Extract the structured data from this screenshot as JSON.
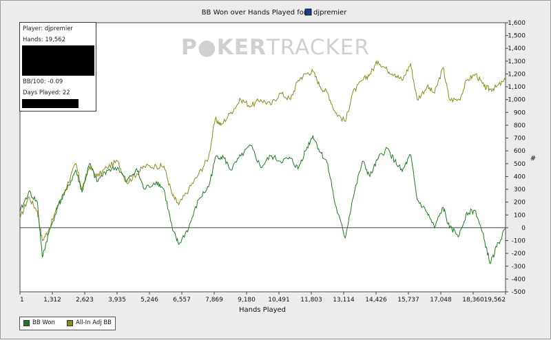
{
  "watermark": {
    "part1": "P",
    "part2": "KER",
    "part3": "TRACKER"
  },
  "info_box": {
    "player": "Player: djpremier",
    "hands": "Hands: 19,562",
    "bb100": "BB/100: -0.09",
    "days": "Days Played: 22"
  },
  "legend": {
    "series1": "BB Won",
    "series2": "All-In Adj BB"
  },
  "colors": {
    "bb_won": "#1f7a1f",
    "allin": "#8a8a1e",
    "zero_line": "#000000"
  },
  "chart_data": {
    "type": "line",
    "title_prefix": "BB Won over Hands Played for",
    "title_player": "djpremier",
    "xlabel": "Hands Played",
    "ylabel": "#",
    "xlim": [
      1,
      19562
    ],
    "ylim": [
      -500,
      1600
    ],
    "x_ticks": [
      "1",
      "1,312",
      "2,623",
      "3,935",
      "5,246",
      "6,557",
      "7,869",
      "9,180",
      "10,491",
      "11,803",
      "13,114",
      "14,426",
      "15,737",
      "17,048",
      "18,360",
      "19,562"
    ],
    "y_ticks": [
      "1,600",
      "1,500",
      "1,400",
      "1,300",
      "1,200",
      "1,100",
      "1,000",
      "900",
      "800",
      "700",
      "600",
      "500",
      "400",
      "300",
      "200",
      "100",
      "0",
      "-100",
      "-200",
      "-300",
      "-400",
      "-500"
    ],
    "series": [
      {
        "name": "BB Won",
        "points": [
          [
            1,
            120
          ],
          [
            350,
            280
          ],
          [
            700,
            200
          ],
          [
            900,
            -230
          ],
          [
            1150,
            -50
          ],
          [
            1550,
            180
          ],
          [
            1900,
            300
          ],
          [
            2250,
            450
          ],
          [
            2500,
            280
          ],
          [
            2800,
            500
          ],
          [
            3100,
            360
          ],
          [
            3500,
            450
          ],
          [
            3935,
            470
          ],
          [
            4300,
            360
          ],
          [
            4700,
            460
          ],
          [
            5000,
            300
          ],
          [
            5500,
            360
          ],
          [
            5800,
            300
          ],
          [
            6150,
            -20
          ],
          [
            6400,
            -130
          ],
          [
            6800,
            0
          ],
          [
            7200,
            220
          ],
          [
            7600,
            320
          ],
          [
            7900,
            560
          ],
          [
            8200,
            550
          ],
          [
            8500,
            450
          ],
          [
            8900,
            560
          ],
          [
            9300,
            640
          ],
          [
            9700,
            470
          ],
          [
            10100,
            560
          ],
          [
            10491,
            520
          ],
          [
            10900,
            540
          ],
          [
            11200,
            460
          ],
          [
            11500,
            600
          ],
          [
            11803,
            720
          ],
          [
            12100,
            590
          ],
          [
            12400,
            500
          ],
          [
            12700,
            180
          ],
          [
            13100,
            -80
          ],
          [
            13400,
            220
          ],
          [
            13800,
            520
          ],
          [
            14100,
            400
          ],
          [
            14426,
            540
          ],
          [
            14800,
            620
          ],
          [
            15100,
            520
          ],
          [
            15400,
            440
          ],
          [
            15737,
            570
          ],
          [
            16000,
            220
          ],
          [
            16400,
            120
          ],
          [
            16700,
            0
          ],
          [
            17048,
            160
          ],
          [
            17300,
            0
          ],
          [
            17700,
            -60
          ],
          [
            18000,
            120
          ],
          [
            18360,
            130
          ],
          [
            18700,
            -90
          ],
          [
            18950,
            -280
          ],
          [
            19200,
            -150
          ],
          [
            19562,
            -10
          ]
        ]
      },
      {
        "name": "All-In Adj BB",
        "points": [
          [
            1,
            70
          ],
          [
            350,
            240
          ],
          [
            700,
            130
          ],
          [
            900,
            -100
          ],
          [
            1150,
            -20
          ],
          [
            1550,
            180
          ],
          [
            1900,
            330
          ],
          [
            2250,
            500
          ],
          [
            2500,
            300
          ],
          [
            2800,
            480
          ],
          [
            3100,
            400
          ],
          [
            3500,
            470
          ],
          [
            3935,
            520
          ],
          [
            4300,
            350
          ],
          [
            4700,
            420
          ],
          [
            5000,
            480
          ],
          [
            5500,
            480
          ],
          [
            5800,
            480
          ],
          [
            6150,
            250
          ],
          [
            6400,
            180
          ],
          [
            6800,
            300
          ],
          [
            7200,
            420
          ],
          [
            7600,
            550
          ],
          [
            7869,
            850
          ],
          [
            8100,
            800
          ],
          [
            8500,
            900
          ],
          [
            8900,
            1000
          ],
          [
            9300,
            950
          ],
          [
            9700,
            1000
          ],
          [
            10100,
            960
          ],
          [
            10491,
            1050
          ],
          [
            10900,
            1000
          ],
          [
            11200,
            1150
          ],
          [
            11500,
            1200
          ],
          [
            11803,
            1220
          ],
          [
            12100,
            1100
          ],
          [
            12400,
            1050
          ],
          [
            12700,
            900
          ],
          [
            13114,
            830
          ],
          [
            13400,
            1050
          ],
          [
            13800,
            1150
          ],
          [
            14100,
            1200
          ],
          [
            14426,
            1300
          ],
          [
            14800,
            1230
          ],
          [
            15100,
            1200
          ],
          [
            15400,
            1150
          ],
          [
            15737,
            1280
          ],
          [
            16000,
            1000
          ],
          [
            16400,
            1100
          ],
          [
            16700,
            1050
          ],
          [
            17048,
            1250
          ],
          [
            17300,
            1000
          ],
          [
            17700,
            1000
          ],
          [
            18000,
            1150
          ],
          [
            18360,
            1200
          ],
          [
            18700,
            1100
          ],
          [
            18950,
            1080
          ],
          [
            19200,
            1100
          ],
          [
            19562,
            1150
          ]
        ]
      }
    ]
  }
}
